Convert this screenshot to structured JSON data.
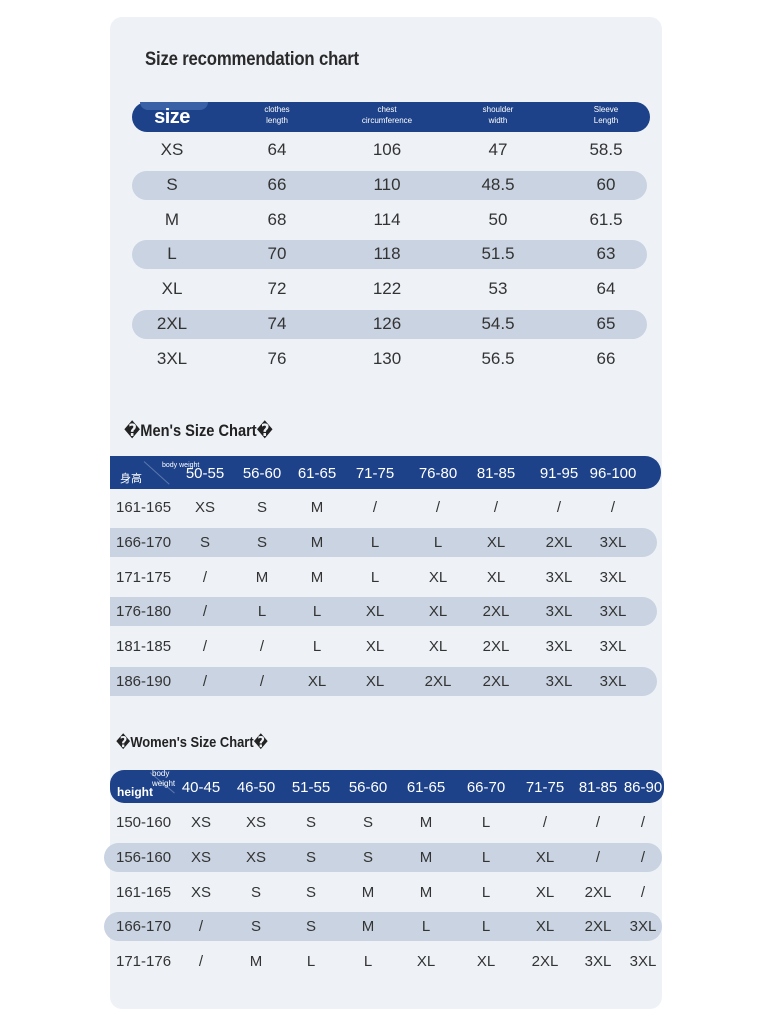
{
  "title": "Size recommendation chart",
  "colors": {
    "header": "#1d4289",
    "stripe": "#c9d3e1",
    "card": "#eef2f7"
  },
  "top_table": {
    "headers": [
      {
        "line1": "size",
        "line2": ""
      },
      {
        "line1": "clothes",
        "line2": "length"
      },
      {
        "line1": "chest",
        "line2": "circumference"
      },
      {
        "line1": "shoulder",
        "line2": "width"
      },
      {
        "line1": "Sleeve",
        "line2": "Length"
      }
    ],
    "rows": [
      [
        "XS",
        "64",
        "106",
        "47",
        "58.5"
      ],
      [
        "S",
        "66",
        "110",
        "48.5",
        "60"
      ],
      [
        "M",
        "68",
        "114",
        "50",
        "61.5"
      ],
      [
        "L",
        "70",
        "118",
        "51.5",
        "63"
      ],
      [
        "XL",
        "72",
        "122",
        "53",
        "64"
      ],
      [
        "2XL",
        "74",
        "126",
        "54.5",
        "65"
      ],
      [
        "3XL",
        "76",
        "130",
        "56.5",
        "66"
      ]
    ]
  },
  "men": {
    "title": "�Men's Size Chart�",
    "corner_top": "body weight",
    "corner_bottom": "身高",
    "weights": [
      "50-55",
      "56-60",
      "61-65",
      "71-75",
      "76-80",
      "81-85",
      "91-95",
      "96-100"
    ],
    "rows": [
      {
        "height": "161-165",
        "sizes": [
          "XS",
          "S",
          "M",
          "/",
          "/",
          "/",
          "/",
          "/"
        ]
      },
      {
        "height": "166-170",
        "sizes": [
          "S",
          "S",
          "M",
          "L",
          "L",
          "XL",
          "2XL",
          "3XL"
        ]
      },
      {
        "height": "171-175",
        "sizes": [
          "/",
          "M",
          "M",
          "L",
          "XL",
          "XL",
          "3XL",
          "3XL"
        ]
      },
      {
        "height": "176-180",
        "sizes": [
          "/",
          "L",
          "L",
          "XL",
          "XL",
          "2XL",
          "3XL",
          "3XL"
        ]
      },
      {
        "height": "181-185",
        "sizes": [
          "/",
          "/",
          "L",
          "XL",
          "XL",
          "2XL",
          "3XL",
          "3XL"
        ]
      },
      {
        "height": "186-190",
        "sizes": [
          "/",
          "/",
          "XL",
          "XL",
          "2XL",
          "2XL",
          "3XL",
          "3XL"
        ]
      }
    ]
  },
  "women": {
    "title": "�Women's Size Chart�",
    "corner_top_1": "body",
    "corner_top_2": "weight",
    "corner_bottom": "height",
    "weights": [
      "40-45",
      "46-50",
      "51-55",
      "56-60",
      "61-65",
      "66-70",
      "71-75",
      "81-85",
      "86-90"
    ],
    "rows": [
      {
        "height": "150-160",
        "sizes": [
          "XS",
          "XS",
          "S",
          "S",
          "M",
          "L",
          "/",
          "/",
          "/"
        ]
      },
      {
        "height": "156-160",
        "sizes": [
          "XS",
          "XS",
          "S",
          "S",
          "M",
          "L",
          "XL",
          "/",
          "/"
        ]
      },
      {
        "height": "161-165",
        "sizes": [
          "XS",
          "S",
          "S",
          "M",
          "M",
          "L",
          "XL",
          "2XL",
          "/"
        ]
      },
      {
        "height": "166-170",
        "sizes": [
          "/",
          "S",
          "S",
          "M",
          "L",
          "L",
          "XL",
          "2XL",
          "3XL"
        ]
      },
      {
        "height": "171-176",
        "sizes": [
          "/",
          "M",
          "L",
          "L",
          "XL",
          "XL",
          "2XL",
          "3XL",
          "3XL"
        ]
      }
    ]
  }
}
